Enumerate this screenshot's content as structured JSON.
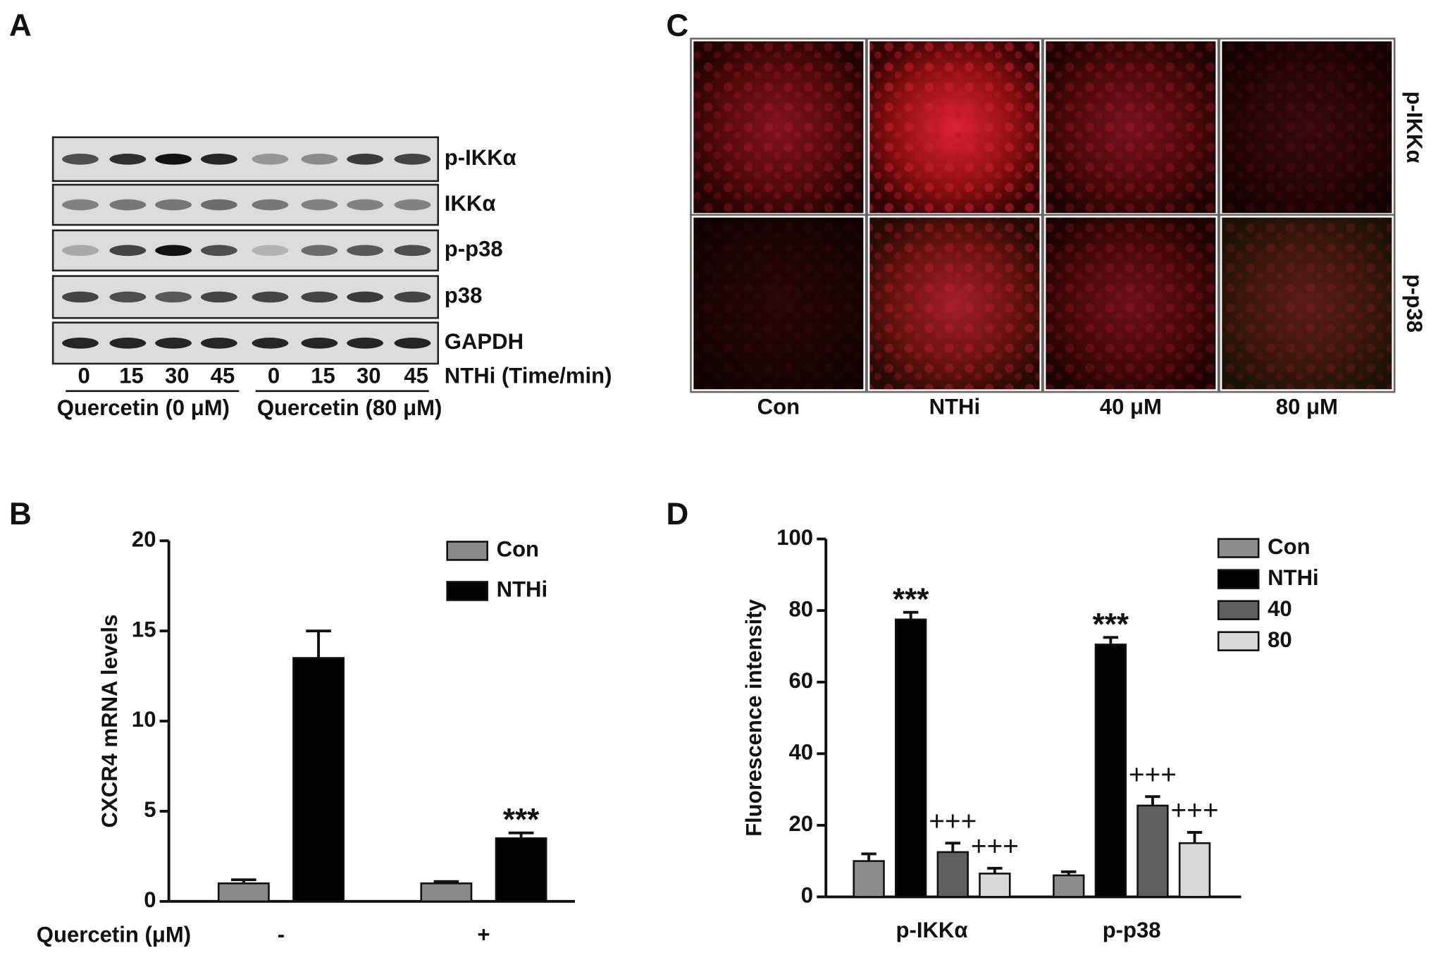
{
  "panels": {
    "a": "A",
    "b": "B",
    "c": "C",
    "d": "D"
  },
  "blot": {
    "rows": [
      "p-IKKα",
      "IKKα",
      "p-p38",
      "p38",
      "GAPDH"
    ],
    "times": [
      "0",
      "15",
      "30",
      "45",
      "0",
      "15",
      "30",
      "45"
    ],
    "time_label": "NTHi (Time/min)",
    "groups": [
      "Quercetin (0 μM)",
      "Quercetin (80 μM)"
    ]
  },
  "micrographs": {
    "columns": [
      "Con",
      "NTHi",
      "40 μM",
      "80 μM"
    ],
    "rows": [
      "p-IKKα",
      "p-p38"
    ]
  },
  "chart_data": [
    {
      "type": "bar",
      "ylabel": "CXCR4 mRNA levels",
      "xlabel": "Quercetin (μM)",
      "categories": [
        "-",
        "+"
      ],
      "series": [
        {
          "name": "Con",
          "color": "#8a8a8a",
          "values": [
            1.0,
            1.0
          ],
          "errors": [
            0.2,
            0.1
          ],
          "annotations": [
            null,
            null
          ]
        },
        {
          "name": "NTHi",
          "color": "#000000",
          "values": [
            13.5,
            3.5
          ],
          "errors": [
            1.5,
            0.3
          ],
          "annotations": [
            null,
            "***"
          ]
        }
      ],
      "ylim": [
        0,
        20
      ],
      "yticks": [
        0,
        5,
        10,
        15,
        20
      ],
      "legend": "top-right"
    },
    {
      "type": "bar",
      "ylabel": "Fluorescence intensity",
      "categories": [
        "p-IKKα",
        "p-p38"
      ],
      "series": [
        {
          "name": "Con",
          "color": "#8c8c8c",
          "values": [
            10,
            6
          ],
          "errors": [
            2,
            1
          ],
          "annotations": [
            null,
            null
          ]
        },
        {
          "name": "NTHi",
          "color": "#000000",
          "values": [
            77.5,
            70.5
          ],
          "errors": [
            2,
            2
          ],
          "annotations": [
            "***",
            "***"
          ]
        },
        {
          "name": "40",
          "color": "#606060",
          "values": [
            12.5,
            25.5
          ],
          "errors": [
            2.5,
            2.5
          ],
          "annotations": [
            "+++",
            "+++"
          ]
        },
        {
          "name": "80",
          "color": "#d9d9d9",
          "values": [
            6.5,
            15
          ],
          "errors": [
            1.5,
            3
          ],
          "annotations": [
            "+++",
            "+++"
          ]
        }
      ],
      "ylim": [
        0,
        100
      ],
      "yticks": [
        0,
        20,
        40,
        60,
        80,
        100
      ],
      "legend": "top-right"
    }
  ]
}
